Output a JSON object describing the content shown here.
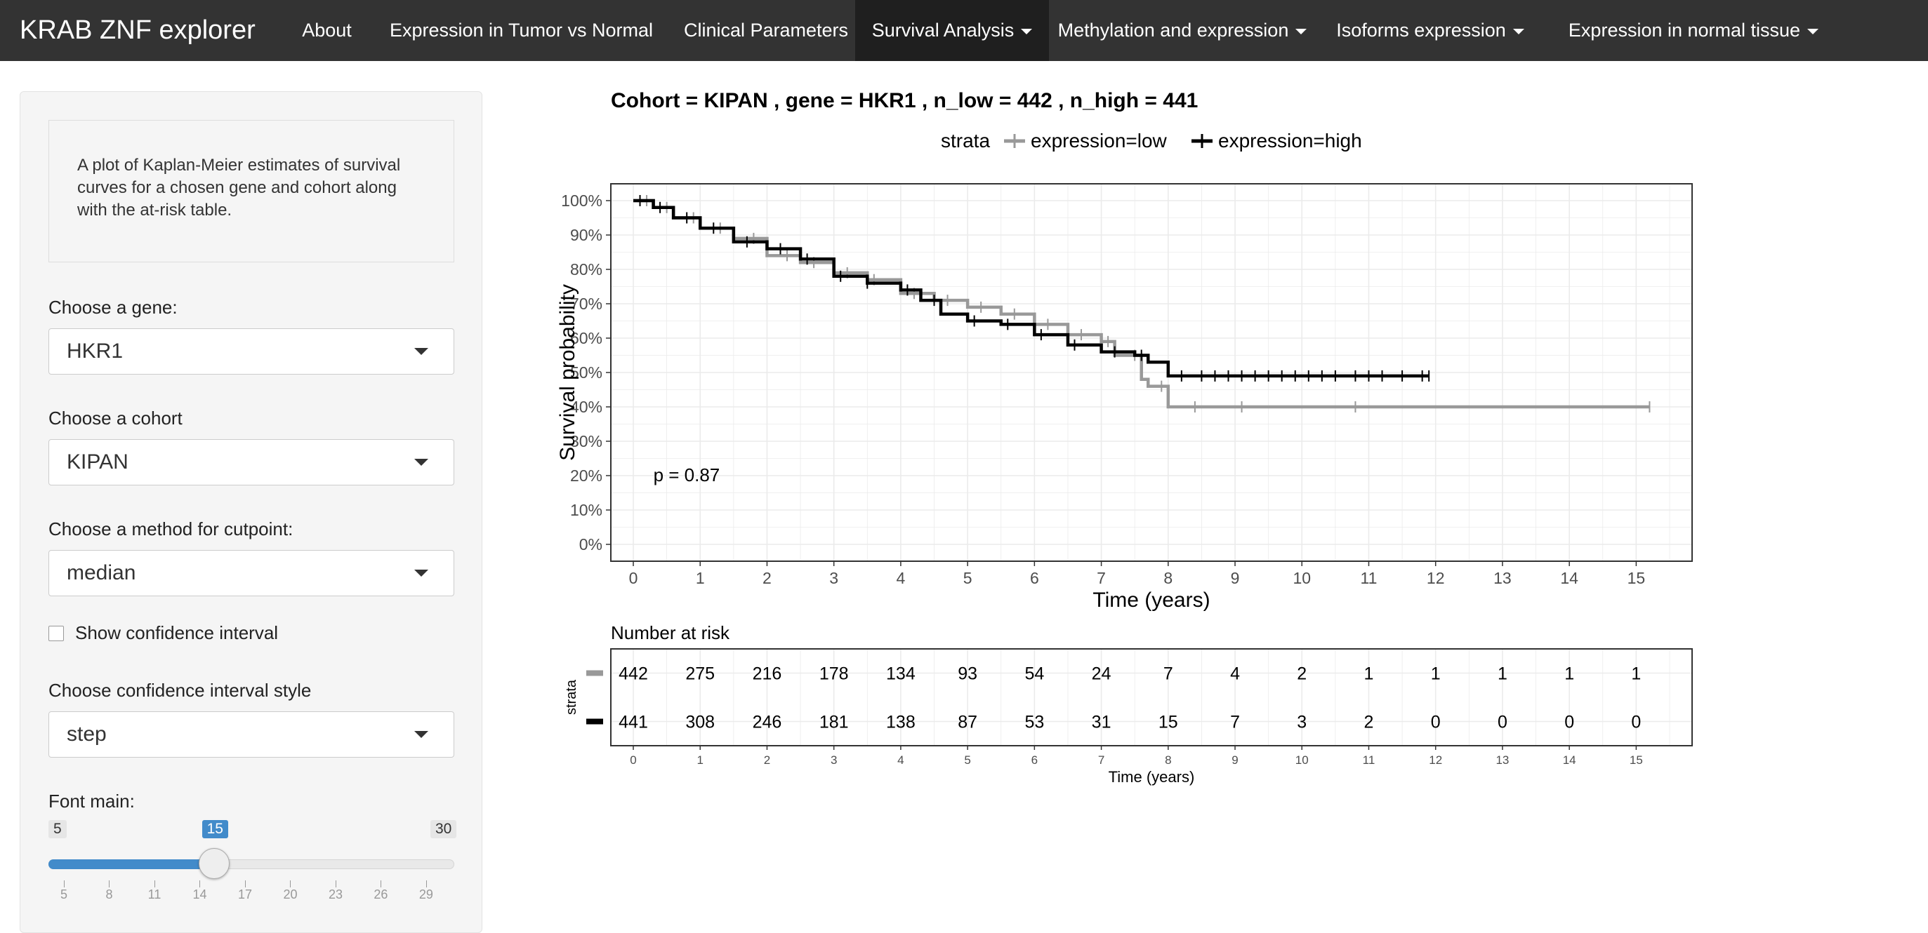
{
  "navbar": {
    "brand": "KRAB ZNF explorer",
    "items": [
      {
        "label": "About"
      },
      {
        "label": "Expression in Tumor vs Normal"
      },
      {
        "label": "Clinical Parameters"
      },
      {
        "label": "Survival Analysis",
        "active": true,
        "dropdown": true
      },
      {
        "label": "Methylation and expression",
        "dropdown": true
      },
      {
        "label": "Isoforms expression",
        "dropdown": true
      },
      {
        "label": "Expression in normal tissue",
        "dropdown": true
      }
    ]
  },
  "sidebar": {
    "description": "A plot of Kaplan-Meier estimates of survival curves for a chosen gene and cohort along with the at-risk table.",
    "gene": {
      "label": "Choose a gene:",
      "value": "HKR1"
    },
    "cohort": {
      "label": "Choose a cohort",
      "value": "KIPAN"
    },
    "cutpoint": {
      "label": "Choose a method for cutpoint:",
      "value": "median"
    },
    "confidence": {
      "label": "Show confidence interval",
      "checked": false
    },
    "ci_style": {
      "label": "Choose confidence interval style",
      "value": "step"
    },
    "font_main": {
      "label": "Font main:",
      "min": "5",
      "max": "30",
      "value": "15",
      "fraction": 0.4,
      "ticks": [
        "5",
        "8",
        "11",
        "14",
        "17",
        "20",
        "23",
        "26",
        "29"
      ]
    }
  },
  "colors": {
    "low": "#999999",
    "high": "#000000",
    "accent": "#428bca"
  },
  "chart_data": [
    {
      "type": "line",
      "title": "Cohort =  KIPAN , gene =  HKR1 , n_low =  442 , n_high =  441",
      "xlabel": "Time (years)",
      "ylabel": "Survival probability",
      "xlim": [
        0,
        15.5
      ],
      "ylim": [
        0,
        1
      ],
      "x_ticks": [
        "0",
        "1",
        "2",
        "3",
        "4",
        "5",
        "6",
        "7",
        "8",
        "9",
        "10",
        "11",
        "12",
        "13",
        "14",
        "15"
      ],
      "y_ticks": [
        "0%",
        "10%",
        "20%",
        "30%",
        "40%",
        "50%",
        "60%",
        "70%",
        "80%",
        "90%",
        "100%"
      ],
      "legend": {
        "title": "strata",
        "position": "top"
      },
      "annotation": "p = 0.87",
      "grid": true,
      "series": [
        {
          "name": "expression=low",
          "step": true,
          "points": [
            [
              0,
              1.0
            ],
            [
              0.3,
              0.98
            ],
            [
              0.6,
              0.95
            ],
            [
              1.0,
              0.92
            ],
            [
              1.5,
              0.89
            ],
            [
              2.0,
              0.84
            ],
            [
              2.5,
              0.82
            ],
            [
              3.0,
              0.79
            ],
            [
              3.5,
              0.77
            ],
            [
              4.0,
              0.73
            ],
            [
              4.5,
              0.71
            ],
            [
              5.0,
              0.69
            ],
            [
              5.5,
              0.67
            ],
            [
              6.0,
              0.64
            ],
            [
              6.5,
              0.61
            ],
            [
              7.0,
              0.59
            ],
            [
              7.2,
              0.55
            ],
            [
              7.6,
              0.48
            ],
            [
              7.7,
              0.46
            ],
            [
              8.0,
              0.4
            ],
            [
              15.2,
              0.4
            ]
          ],
          "censor_x": [
            0.2,
            0.5,
            0.9,
            1.3,
            1.8,
            2.3,
            2.7,
            3.2,
            3.6,
            4.2,
            4.7,
            5.2,
            5.7,
            6.2,
            6.7,
            7.1,
            7.5,
            7.9,
            8.4,
            9.1,
            10.8,
            15.2
          ]
        },
        {
          "name": "expression=high",
          "step": true,
          "points": [
            [
              0,
              1.0
            ],
            [
              0.3,
              0.98
            ],
            [
              0.6,
              0.95
            ],
            [
              1.0,
              0.92
            ],
            [
              1.5,
              0.88
            ],
            [
              2.0,
              0.86
            ],
            [
              2.5,
              0.83
            ],
            [
              3.0,
              0.78
            ],
            [
              3.5,
              0.76
            ],
            [
              4.0,
              0.74
            ],
            [
              4.3,
              0.71
            ],
            [
              4.6,
              0.67
            ],
            [
              5.0,
              0.65
            ],
            [
              5.5,
              0.64
            ],
            [
              6.0,
              0.61
            ],
            [
              6.5,
              0.58
            ],
            [
              7.0,
              0.56
            ],
            [
              7.5,
              0.55
            ],
            [
              7.7,
              0.53
            ],
            [
              8.0,
              0.49
            ],
            [
              11.9,
              0.49
            ]
          ],
          "censor_x": [
            0.1,
            0.4,
            0.8,
            1.2,
            1.7,
            2.2,
            2.6,
            3.1,
            3.5,
            4.1,
            4.5,
            5.1,
            5.6,
            6.1,
            6.6,
            7.2,
            7.6,
            8.2,
            8.5,
            8.7,
            8.9,
            9.1,
            9.3,
            9.5,
            9.7,
            9.9,
            10.1,
            10.3,
            10.5,
            10.8,
            11.0,
            11.2,
            11.5,
            11.8,
            11.9
          ]
        }
      ]
    },
    {
      "type": "table",
      "title": "Number at risk",
      "ylabel": "strata",
      "xlabel": "Time (years)",
      "x_ticks": [
        "0",
        "1",
        "2",
        "3",
        "4",
        "5",
        "6",
        "7",
        "8",
        "9",
        "10",
        "11",
        "12",
        "13",
        "14",
        "15"
      ],
      "rows": [
        {
          "name": "expression=low",
          "values": [
            "442",
            "275",
            "216",
            "178",
            "134",
            "93",
            "54",
            "24",
            "7",
            "4",
            "2",
            "1",
            "1",
            "1",
            "1",
            "1"
          ]
        },
        {
          "name": "expression=high",
          "values": [
            "441",
            "308",
            "246",
            "181",
            "138",
            "87",
            "53",
            "31",
            "15",
            "7",
            "3",
            "2",
            "0",
            "0",
            "0",
            "0"
          ]
        }
      ]
    }
  ]
}
